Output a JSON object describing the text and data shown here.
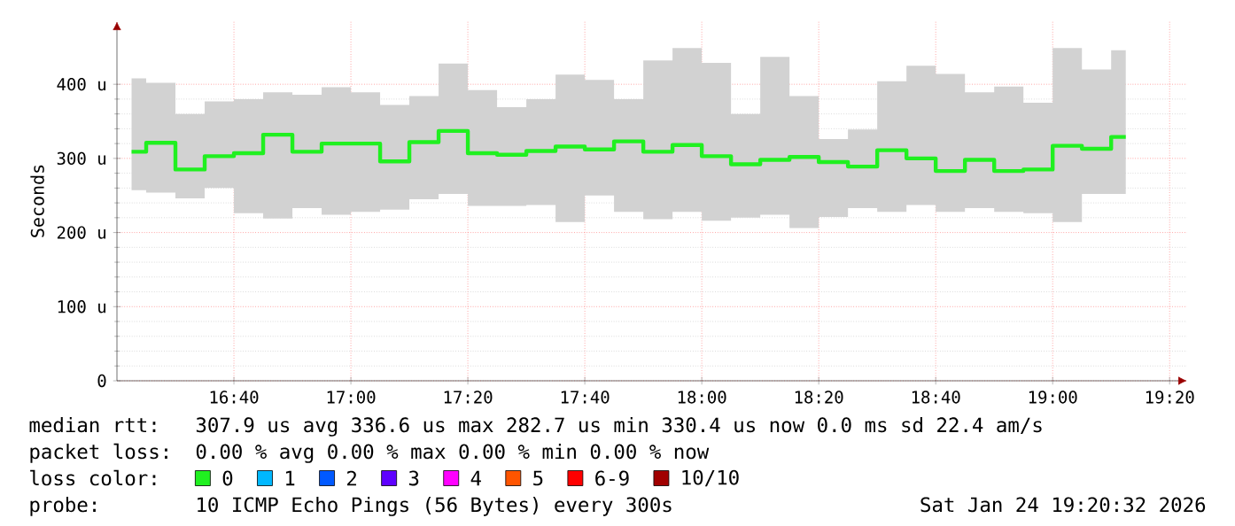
{
  "chart_data": {
    "type": "step",
    "ylabel": "Seconds",
    "x": [
      16.375,
      16.4583,
      16.5417,
      16.625,
      16.7083,
      16.7917,
      16.875,
      16.9583,
      17.0417,
      17.125,
      17.2083,
      17.2917,
      17.375,
      17.4583,
      17.5417,
      17.625,
      17.7083,
      17.7917,
      17.875,
      17.9583,
      18.0417,
      18.125,
      18.2083,
      18.2917,
      18.375,
      18.4583,
      18.5417,
      18.625,
      18.7083,
      18.7917,
      18.875,
      18.9583,
      19.0417,
      19.125,
      19.2083
    ],
    "series": [
      {
        "name": "0",
        "color": "#20f020",
        "values": [
          309,
          321,
          285,
          303,
          307,
          332,
          309,
          320,
          320,
          296,
          322,
          337,
          307,
          305,
          310,
          316,
          312,
          323,
          309,
          318,
          303,
          292,
          298,
          302,
          295,
          289,
          311,
          300,
          283,
          298,
          283,
          285,
          317,
          313,
          329
        ],
        "lower": [
          257,
          254,
          246,
          260,
          226,
          219,
          233,
          224,
          228,
          231,
          245,
          252,
          236,
          236,
          237,
          214,
          250,
          228,
          218,
          228,
          216,
          220,
          224,
          206,
          221,
          233,
          228,
          237,
          228,
          233,
          228,
          226,
          214,
          252,
          252
        ],
        "upper": [
          408,
          402,
          360,
          377,
          380,
          389,
          386,
          396,
          389,
          372,
          384,
          428,
          392,
          369,
          380,
          413,
          406,
          380,
          432,
          449,
          429,
          360,
          437,
          384,
          326,
          339,
          404,
          425,
          414,
          389,
          397,
          375,
          449,
          420,
          446
        ]
      },
      {
        "name": "1",
        "color": "#00b8ff",
        "values": [
          null,
          null,
          null,
          null,
          null,
          null,
          null,
          null,
          null,
          null,
          null,
          null,
          null,
          null,
          null,
          null,
          null,
          null,
          null,
          null,
          null,
          null,
          null,
          null,
          null,
          null,
          null,
          null,
          null,
          null,
          null,
          null,
          null,
          null,
          null
        ]
      },
      {
        "name": "2",
        "color": "#0059ff",
        "values": [
          null,
          null,
          null,
          null,
          null,
          null,
          null,
          null,
          null,
          null,
          null,
          null,
          null,
          null,
          null,
          null,
          null,
          null,
          null,
          null,
          null,
          null,
          null,
          null,
          null,
          null,
          null,
          null,
          null,
          null,
          null,
          null,
          null,
          null,
          null
        ]
      },
      {
        "name": "3",
        "color": "#5e00ff",
        "values": [
          null,
          null,
          null,
          null,
          null,
          null,
          null,
          null,
          null,
          null,
          null,
          null,
          null,
          null,
          null,
          null,
          null,
          null,
          null,
          null,
          null,
          null,
          null,
          null,
          null,
          null,
          null,
          null,
          null,
          null,
          null,
          null,
          null,
          null,
          null
        ]
      },
      {
        "name": "4",
        "color": "#ff00ff",
        "values": [
          null,
          null,
          null,
          null,
          null,
          null,
          null,
          null,
          null,
          null,
          null,
          null,
          null,
          null,
          null,
          null,
          null,
          null,
          null,
          null,
          null,
          null,
          null,
          null,
          null,
          null,
          null,
          null,
          null,
          null,
          null,
          null,
          null,
          null,
          null
        ]
      },
      {
        "name": "5",
        "color": "#ff5500",
        "values": [
          null,
          null,
          null,
          null,
          null,
          null,
          null,
          null,
          null,
          null,
          null,
          null,
          null,
          null,
          null,
          null,
          null,
          null,
          null,
          null,
          null,
          null,
          null,
          null,
          null,
          null,
          null,
          null,
          null,
          null,
          null,
          null,
          null,
          null,
          null
        ]
      },
      {
        "name": "6-9",
        "color": "#ff0000",
        "values": [
          null,
          null,
          null,
          null,
          null,
          null,
          null,
          null,
          null,
          null,
          null,
          null,
          null,
          null,
          null,
          null,
          null,
          null,
          null,
          null,
          null,
          null,
          null,
          null,
          null,
          null,
          null,
          null,
          null,
          null,
          null,
          null,
          null,
          null,
          null
        ]
      },
      {
        "name": "10/10",
        "color": "#a10000",
        "values": [
          null,
          null,
          null,
          null,
          null,
          null,
          null,
          null,
          null,
          null,
          null,
          null,
          null,
          null,
          null,
          null,
          null,
          null,
          null,
          null,
          null,
          null,
          null,
          null,
          null,
          null,
          null,
          null,
          null,
          null,
          null,
          null,
          null,
          null,
          null
        ]
      }
    ],
    "xlim": [
      16.3333,
      19.3833
    ],
    "ylim": [
      0,
      485
    ],
    "xticks": [
      {
        "value": 16.6667,
        "label": "16:40"
      },
      {
        "value": 17,
        "label": "17:00"
      },
      {
        "value": 17.3333,
        "label": "17:20"
      },
      {
        "value": 17.6667,
        "label": "17:40"
      },
      {
        "value": 18,
        "label": "18:00"
      },
      {
        "value": 18.3333,
        "label": "18:20"
      },
      {
        "value": 18.6667,
        "label": "18:40"
      },
      {
        "value": 19,
        "label": "19:00"
      },
      {
        "value": 19.3333,
        "label": "19:20"
      }
    ],
    "yticks": [
      0,
      {
        "value": 100,
        "label": "100 u"
      },
      {
        "value": 200,
        "label": "200 u"
      },
      {
        "value": 300,
        "label": "300 u"
      },
      {
        "value": 400,
        "label": "400 u"
      }
    ],
    "grid": true,
    "legend": "bottom",
    "legend_title": "loss color:",
    "annotations": [
      "median rtt:",
      "307.9 us avg  336.6 us max  282.7 us min  330.4 us now  0.0 ms sd  22.4   am/s",
      "packet loss:",
      "0.00 % avg  0.00 % max  0.00 % min  0.00 % now",
      "probe:",
      "10 ICMP Echo Pings (56 Bytes) every 300s",
      "Sat Jan 24 19:20:32 2026"
    ]
  }
}
